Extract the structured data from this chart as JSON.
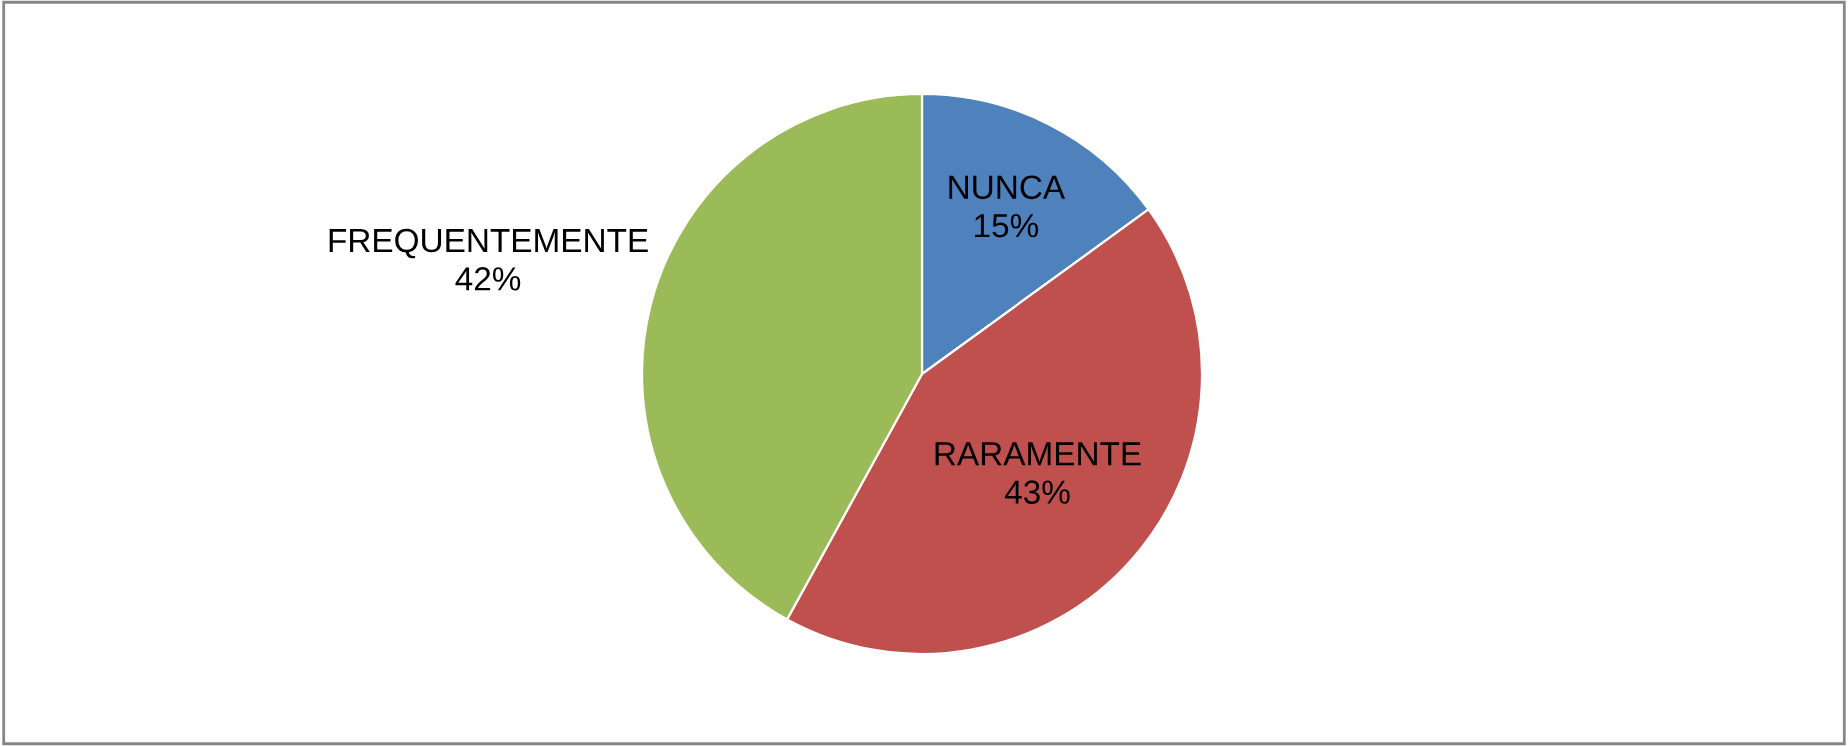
{
  "chart_data": {
    "type": "pie",
    "categories": [
      "NUNCA",
      "RARAMENTE",
      "FREQUENTEMENTE"
    ],
    "values": [
      15,
      43,
      42
    ],
    "colors": [
      "#4f81bd",
      "#c0504d",
      "#9bbb59"
    ],
    "value_labels": [
      "15%",
      "43%",
      "42%"
    ],
    "legend": false
  }
}
